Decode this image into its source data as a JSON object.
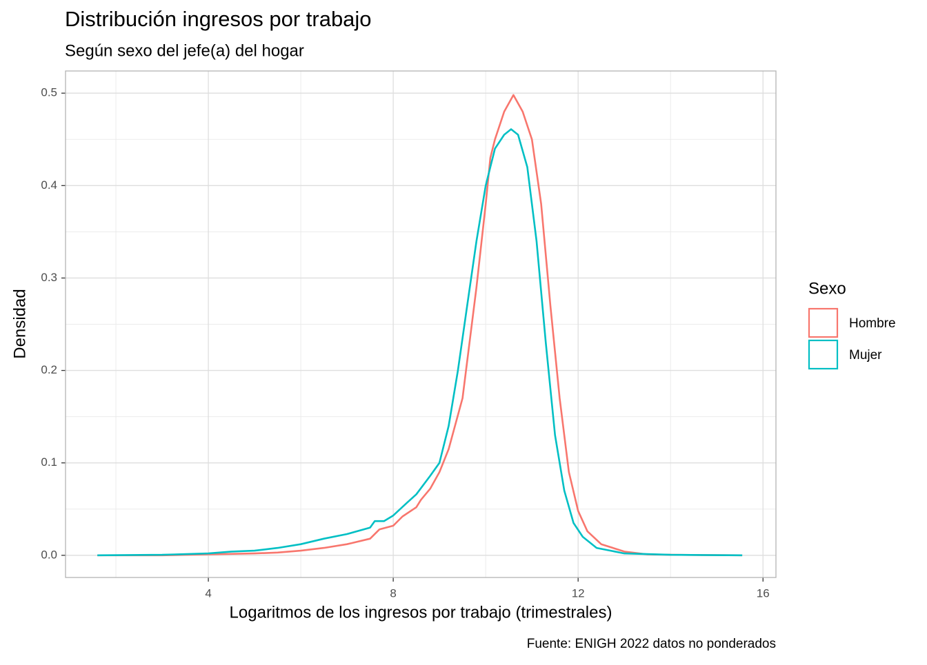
{
  "chart_data": {
    "type": "line",
    "title": "Distribución ingresos por trabajo",
    "subtitle": "Según sexo del jefe(a) del hogar",
    "x_label": "Logaritmos de los ingresos por trabajo (trimestrales)",
    "y_label": "Densidad",
    "caption": "Fuente: ENIGH 2022 datos no ponderados",
    "legend_title": "Sexo",
    "legend_position": "right",
    "grid": true,
    "xlim": [
      0.91,
      16.28
    ],
    "ylim": [
      -0.024,
      0.524
    ],
    "xticks": [
      4,
      8,
      12,
      16
    ],
    "yticks": [
      {
        "value": 0,
        "label": "0.0"
      },
      0.1,
      0.2,
      0.3,
      0.4,
      0.5
    ],
    "x_minor_ticks": [
      2,
      6,
      10,
      14
    ],
    "y_minor_ticks": [
      0.05,
      0.15,
      0.25,
      0.35,
      0.45
    ],
    "series": [
      {
        "name": "Hombre",
        "color": "#F8766D",
        "x": [
          1.6,
          3,
          4,
          5,
          5.5,
          6,
          6.5,
          7,
          7.5,
          7.7,
          8,
          8.2,
          8.5,
          8.6,
          8.8,
          9,
          9.2,
          9.5,
          9.8,
          10,
          10.1,
          10.2,
          10.4,
          10.6,
          10.8,
          11,
          11.2,
          11.4,
          11.6,
          11.8,
          12,
          12.2,
          12.5,
          13,
          13.5,
          14,
          15.55
        ],
        "values": [
          0,
          0,
          0.001,
          0.002,
          0.003,
          0.005,
          0.008,
          0.012,
          0.018,
          0.028,
          0.032,
          0.042,
          0.052,
          0.06,
          0.072,
          0.09,
          0.115,
          0.17,
          0.29,
          0.38,
          0.43,
          0.45,
          0.48,
          0.498,
          0.48,
          0.45,
          0.38,
          0.27,
          0.17,
          0.09,
          0.048,
          0.026,
          0.012,
          0.004,
          0.001,
          0.0005,
          0
        ]
      },
      {
        "name": "Mujer",
        "color": "#00BFC4",
        "x": [
          1.6,
          3,
          4,
          4.5,
          5,
          5.5,
          6,
          6.5,
          7,
          7.5,
          7.6,
          7.8,
          8,
          8.3,
          8.5,
          8.8,
          9,
          9.2,
          9.4,
          9.6,
          9.8,
          10,
          10.2,
          10.4,
          10.55,
          10.7,
          10.9,
          11.1,
          11.3,
          11.5,
          11.7,
          11.9,
          12.1,
          12.4,
          13,
          14,
          15.55
        ],
        "values": [
          0,
          0.0005,
          0.002,
          0.004,
          0.005,
          0.008,
          0.012,
          0.018,
          0.023,
          0.03,
          0.037,
          0.037,
          0.043,
          0.057,
          0.066,
          0.086,
          0.1,
          0.14,
          0.2,
          0.27,
          0.34,
          0.4,
          0.44,
          0.455,
          0.461,
          0.455,
          0.42,
          0.34,
          0.23,
          0.13,
          0.07,
          0.035,
          0.02,
          0.008,
          0.002,
          0.0005,
          0
        ]
      }
    ]
  }
}
